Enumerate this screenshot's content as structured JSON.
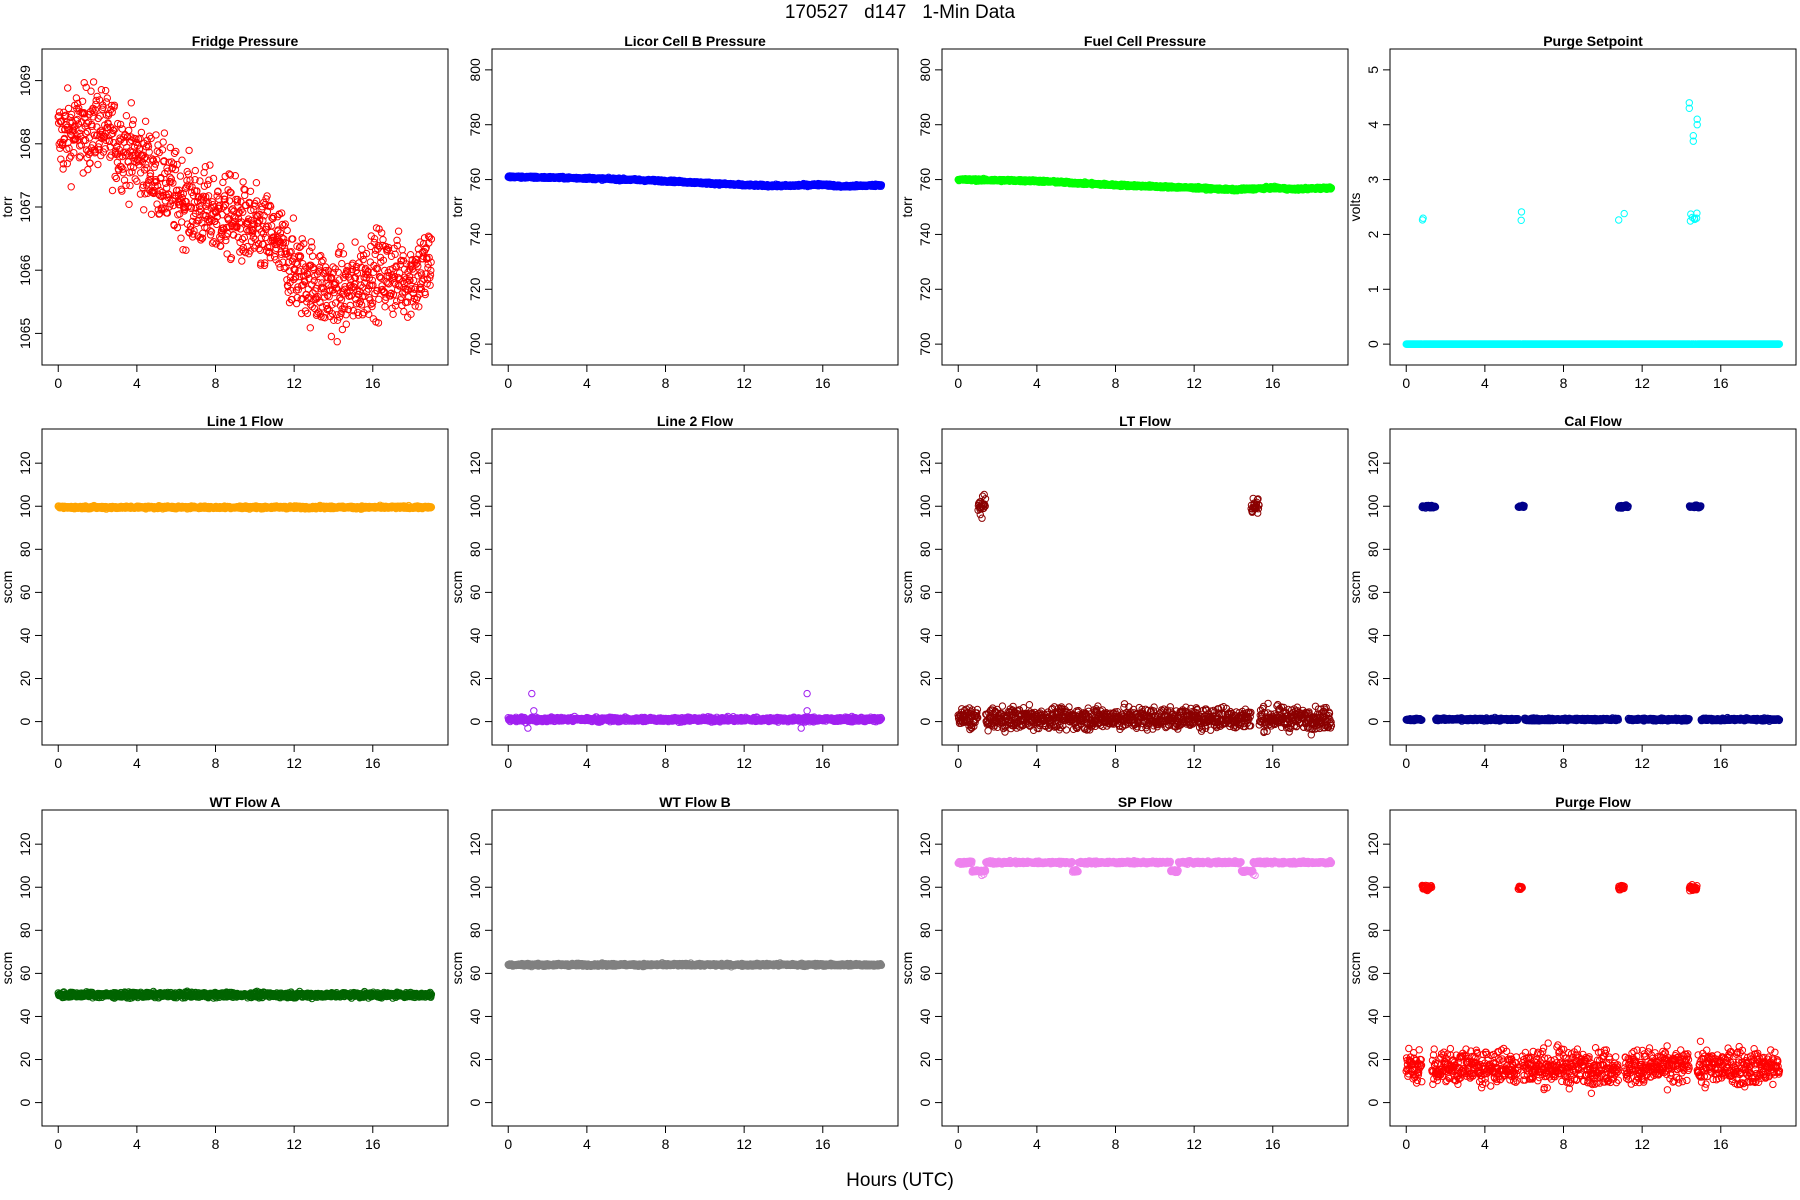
{
  "figure": {
    "title": "170527   d147   1-Min Data",
    "xlabel": "Hours (UTC)"
  },
  "chart_data": [
    {
      "type": "scatter",
      "title": "Fridge Pressure",
      "ylabel": "torr",
      "color": "#ff0000",
      "pattern": "fridge",
      "xlim": [
        0,
        19
      ],
      "ylim": [
        1064.7,
        1069.3
      ],
      "yticks": [
        1065,
        1066,
        1067,
        1068,
        1069
      ],
      "xticks": [
        0,
        4,
        8,
        12,
        16
      ],
      "trend": [
        [
          0,
          1068.1
        ],
        [
          1,
          1068.2
        ],
        [
          2,
          1068.3
        ],
        [
          3,
          1068.0
        ],
        [
          4,
          1067.8
        ],
        [
          5,
          1067.5
        ],
        [
          6,
          1067.2
        ],
        [
          7,
          1067.0
        ],
        [
          8,
          1066.9
        ],
        [
          9,
          1066.8
        ],
        [
          10,
          1066.6
        ],
        [
          11,
          1066.5
        ],
        [
          12,
          1066.0
        ],
        [
          13,
          1065.8
        ],
        [
          14,
          1065.6
        ],
        [
          15,
          1065.7
        ],
        [
          16,
          1066.0
        ],
        [
          17,
          1065.9
        ],
        [
          18,
          1065.9
        ],
        [
          19,
          1066.1
        ]
      ]
    },
    {
      "type": "scatter",
      "title": "Licor Cell B Pressure",
      "ylabel": "torr",
      "color": "#0000ff",
      "pattern": "smooth",
      "xlim": [
        0,
        19
      ],
      "ylim": [
        697,
        803
      ],
      "yticks": [
        700,
        720,
        740,
        760,
        780,
        800
      ],
      "xticks": [
        0,
        4,
        8,
        12,
        16
      ],
      "trend": [
        [
          0,
          761
        ],
        [
          4,
          760.5
        ],
        [
          8,
          759.5
        ],
        [
          12,
          758
        ],
        [
          14,
          757.7
        ],
        [
          16,
          758.2
        ],
        [
          17,
          757.5
        ],
        [
          19,
          758
        ]
      ]
    },
    {
      "type": "scatter",
      "title": "Fuel Cell Pressure",
      "ylabel": "torr",
      "color": "#00ff00",
      "pattern": "smooth",
      "xlim": [
        0,
        19
      ],
      "ylim": [
        697,
        803
      ],
      "yticks": [
        700,
        720,
        740,
        760,
        780,
        800
      ],
      "xticks": [
        0,
        4,
        8,
        12,
        16
      ],
      "trend": [
        [
          0,
          760
        ],
        [
          4,
          759.5
        ],
        [
          8,
          758
        ],
        [
          12,
          757
        ],
        [
          14,
          756.3
        ],
        [
          16,
          757
        ],
        [
          17,
          756.5
        ],
        [
          19,
          757
        ]
      ]
    },
    {
      "type": "scatter",
      "title": "Purge Setpoint",
      "ylabel": "volts",
      "color": "#00ffff",
      "pattern": "purge_setpoint",
      "xlim": [
        0,
        19
      ],
      "ylim": [
        -0.15,
        5.15
      ],
      "yticks": [
        0,
        1,
        2,
        3,
        4,
        5
      ],
      "xticks": [
        0,
        4,
        8,
        12,
        16
      ],
      "base": 0,
      "events": [
        [
          0.8,
          1.3,
          2.3
        ],
        [
          5.7,
          5.9,
          2.3
        ],
        [
          10.8,
          11.1,
          2.3
        ],
        [
          14.4,
          14.8,
          2.3
        ]
      ],
      "outliers": [
        [
          14.4,
          4.4
        ],
        [
          14.4,
          4.3
        ],
        [
          14.6,
          3.8
        ],
        [
          14.6,
          3.7
        ],
        [
          14.8,
          4.1
        ],
        [
          14.8,
          4.0
        ]
      ]
    },
    {
      "type": "scatter",
      "title": "Line 1 Flow",
      "ylabel": "sccm",
      "color": "#ffa500",
      "pattern": "flat",
      "xlim": [
        0,
        19
      ],
      "ylim": [
        -5,
        130
      ],
      "yticks": [
        0,
        20,
        40,
        60,
        80,
        100,
        120
      ],
      "xticks": [
        0,
        4,
        8,
        12,
        16
      ],
      "base": 99.5,
      "noise": 0.3
    },
    {
      "type": "scatter",
      "title": "Line 2 Flow",
      "ylabel": "sccm",
      "color": "#a020f0",
      "pattern": "line2",
      "xlim": [
        0,
        19
      ],
      "ylim": [
        -5,
        130
      ],
      "yticks": [
        0,
        20,
        40,
        60,
        80,
        100,
        120
      ],
      "xticks": [
        0,
        4,
        8,
        12,
        16
      ],
      "base": 1,
      "noise": 0.5,
      "outliers": [
        [
          1.2,
          13
        ],
        [
          1.3,
          5
        ],
        [
          1.2,
          2
        ],
        [
          1.0,
          -3
        ],
        [
          15.2,
          13
        ],
        [
          15.2,
          5
        ],
        [
          15.1,
          2
        ],
        [
          14.9,
          -3
        ]
      ]
    },
    {
      "type": "scatter",
      "title": "LT Flow",
      "ylabel": "sccm",
      "color": "#8b0000",
      "pattern": "events",
      "xlim": [
        0,
        19
      ],
      "ylim": [
        -5,
        130
      ],
      "yticks": [
        0,
        20,
        40,
        60,
        80,
        100,
        120
      ],
      "xticks": [
        0,
        4,
        8,
        12,
        16
      ],
      "base": 1.5,
      "noise": 2.5,
      "events": [
        [
          1.0,
          1.4,
          100
        ],
        [
          14.9,
          15.3,
          100
        ]
      ],
      "event_noise": 2
    },
    {
      "type": "scatter",
      "title": "Cal Flow",
      "ylabel": "sccm",
      "color": "#00008b",
      "pattern": "events",
      "xlim": [
        0,
        19
      ],
      "ylim": [
        -5,
        130
      ],
      "yticks": [
        0,
        20,
        40,
        60,
        80,
        100,
        120
      ],
      "xticks": [
        0,
        4,
        8,
        12,
        16
      ],
      "base": 1,
      "noise": 0.3,
      "events": [
        [
          0.8,
          1.5,
          99.8
        ],
        [
          5.7,
          6.0,
          99.8
        ],
        [
          10.8,
          11.3,
          99.8
        ],
        [
          14.4,
          15.0,
          99.8
        ]
      ],
      "event_noise": 0.3
    },
    {
      "type": "scatter",
      "title": "WT Flow A",
      "ylabel": "sccm",
      "color": "#006400",
      "pattern": "flat",
      "xlim": [
        0,
        19
      ],
      "ylim": [
        -5,
        130
      ],
      "yticks": [
        0,
        20,
        40,
        60,
        80,
        100,
        120
      ],
      "xticks": [
        0,
        4,
        8,
        12,
        16
      ],
      "base": 50,
      "noise": 0.6
    },
    {
      "type": "scatter",
      "title": "WT Flow B",
      "ylabel": "sccm",
      "color": "#808080",
      "pattern": "flat",
      "xlim": [
        0,
        19
      ],
      "ylim": [
        -5,
        130
      ],
      "yticks": [
        0,
        20,
        40,
        60,
        80,
        100,
        120
      ],
      "xticks": [
        0,
        4,
        8,
        12,
        16
      ],
      "base": 64,
      "noise": 0.3
    },
    {
      "type": "scatter",
      "title": "SP Flow",
      "ylabel": "sccm",
      "color": "#ee82ee",
      "pattern": "sp",
      "xlim": [
        0,
        19
      ],
      "ylim": [
        -5,
        130
      ],
      "yticks": [
        0,
        20,
        40,
        60,
        80,
        100,
        120
      ],
      "xticks": [
        0,
        4,
        8,
        12,
        16
      ],
      "base": 111.5,
      "noise": 0.3,
      "dips": [
        [
          0.7,
          1.4,
          107.5
        ],
        [
          5.8,
          6.1,
          107.5
        ],
        [
          10.8,
          11.2,
          107.5
        ],
        [
          14.4,
          15.0,
          107.5
        ]
      ],
      "outliers": [
        [
          1.2,
          105.5
        ],
        [
          1.3,
          106
        ],
        [
          15.0,
          106
        ],
        [
          15.1,
          105.5
        ]
      ]
    },
    {
      "type": "scatter",
      "title": "Purge Flow",
      "ylabel": "sccm",
      "color": "#ff0000",
      "pattern": "events",
      "xlim": [
        0,
        19
      ],
      "ylim": [
        -5,
        130
      ],
      "yticks": [
        0,
        20,
        40,
        60,
        80,
        100,
        120
      ],
      "xticks": [
        0,
        4,
        8,
        12,
        16
      ],
      "base": 16.5,
      "noise": 4,
      "events": [
        [
          0.8,
          1.3,
          99.8
        ],
        [
          5.7,
          5.9,
          99.8
        ],
        [
          10.8,
          11.1,
          99.8
        ],
        [
          14.4,
          14.8,
          99.8
        ]
      ],
      "event_noise": 0.6
    }
  ]
}
